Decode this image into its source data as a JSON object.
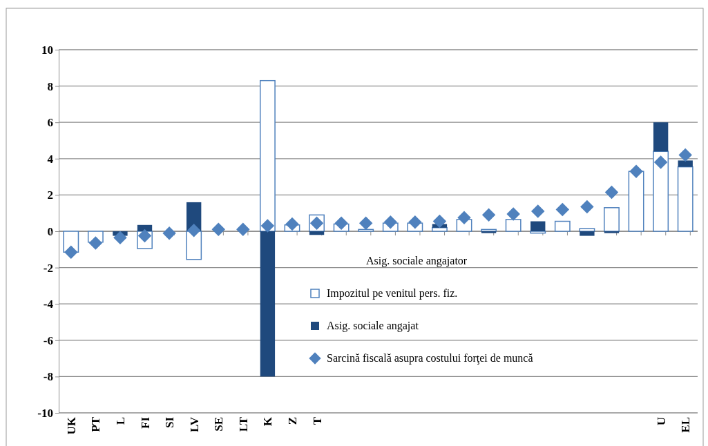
{
  "chart_data": {
    "type": "bar",
    "stacked": true,
    "categories": [
      "UK",
      "PT",
      "L",
      "FI",
      "SI",
      "LV",
      "SE",
      "LT",
      "K",
      "Z",
      "T",
      null,
      null,
      null,
      null,
      null,
      null,
      null,
      null,
      null,
      null,
      null,
      null,
      null,
      "U",
      "EL"
    ],
    "series": [
      {
        "name": "Impozitul pe venitul pers. fiz.",
        "color": "#ffffff",
        "values": [
          -1.15,
          -0.6,
          null,
          -0.95,
          null,
          -1.55,
          null,
          null,
          8.3,
          0.35,
          0.9,
          0.4,
          0.1,
          0.45,
          0.45,
          0.2,
          0.65,
          0.1,
          0.65,
          -0.1,
          0.55,
          0.15,
          1.3,
          3.3,
          4.4,
          3.55
        ]
      },
      {
        "name": "Asig. sociale angajat",
        "color": "#1f497d",
        "values": [
          null,
          null,
          -0.25,
          0.35,
          null,
          1.6,
          null,
          null,
          -8,
          null,
          -0.2,
          null,
          null,
          null,
          null,
          0.2,
          null,
          -0.1,
          null,
          0.55,
          null,
          -0.25,
          -0.1,
          null,
          1.6,
          0.35
        ]
      },
      {
        "name": "Sarcină fiscală asupra costului forţei de muncă",
        "type": "scatter",
        "marker": "diamond",
        "color": "#4f81bd",
        "values": [
          -1.15,
          -0.65,
          -0.35,
          -0.25,
          -0.1,
          0.05,
          0.1,
          0.1,
          0.3,
          0.4,
          0.45,
          0.45,
          0.45,
          0.5,
          0.5,
          0.55,
          0.75,
          0.9,
          0.95,
          1.1,
          1.2,
          1.35,
          2.15,
          3.3,
          3.8,
          4.2
        ]
      }
    ],
    "ylim": [
      -10,
      10
    ],
    "yticks": [
      -10,
      -8,
      -6,
      -4,
      -2,
      0,
      2,
      4,
      6,
      8,
      10
    ],
    "grid": "y",
    "legend": "bottom right",
    "annotations": [
      "Asig. sociale angajator"
    ]
  }
}
